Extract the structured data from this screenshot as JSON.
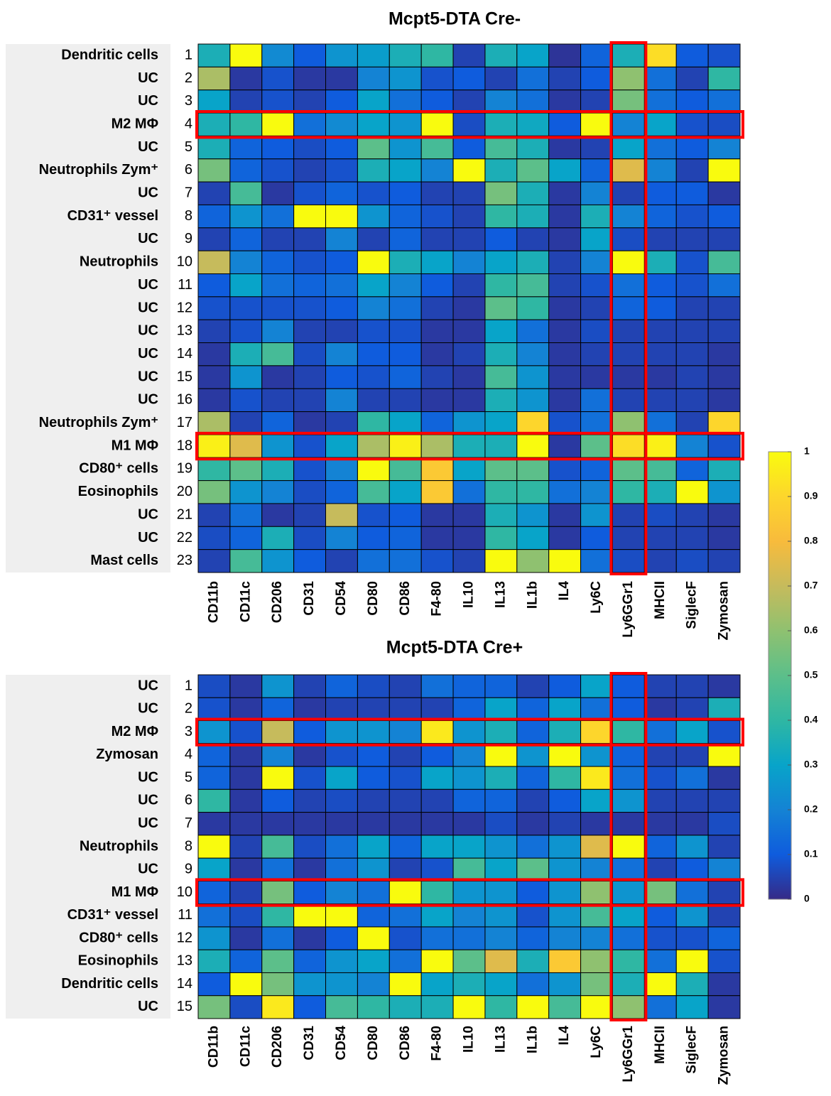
{
  "chart_data": [
    {
      "type": "heatmap",
      "title": "Mcpt5-DTA Cre-",
      "row_labels": [
        "Dendritic cells",
        "UC",
        "UC",
        "M2 MΦ",
        "UC",
        "Neutrophils Zym⁺",
        "UC",
        "CD31⁺ vessel",
        "UC",
        "Neutrophils",
        "UC",
        "UC",
        "UC",
        "UC",
        "UC",
        "UC",
        "Neutrophils Zym⁺",
        "M1 MΦ",
        "CD80⁺ cells",
        "Eosinophils",
        "UC",
        "UC",
        "Mast cells"
      ],
      "row_numbers": [
        1,
        2,
        3,
        4,
        5,
        6,
        7,
        8,
        9,
        10,
        11,
        12,
        13,
        14,
        15,
        16,
        17,
        18,
        19,
        20,
        21,
        22,
        23
      ],
      "columns": [
        "CD11b",
        "CD11c",
        "CD206",
        "CD31",
        "CD54",
        "CD80",
        "CD86",
        "F4-80",
        "IL10",
        "IL13",
        "IL1b",
        "IL4",
        "Ly6C",
        "Ly6GGr1",
        "MHCII",
        "SiglecF",
        "Zymosan"
      ],
      "values": [
        [
          0.35,
          1,
          0.22,
          0.1,
          0.25,
          0.28,
          0.35,
          0.4,
          0.05,
          0.35,
          0.3,
          0.02,
          0.12,
          0.35,
          0.92,
          0.1,
          0.08
        ],
        [
          0.65,
          0.03,
          0.08,
          0.03,
          0.03,
          0.2,
          0.25,
          0.08,
          0.1,
          0.05,
          0.15,
          0.05,
          0.1,
          0.6,
          0.15,
          0.05,
          0.4
        ],
        [
          0.3,
          0.05,
          0.08,
          0.05,
          0.1,
          0.3,
          0.15,
          0.1,
          0.05,
          0.2,
          0.15,
          0.03,
          0.05,
          0.55,
          0.15,
          0.1,
          0.15
        ],
        [
          0.35,
          0.4,
          1,
          0.15,
          0.22,
          0.3,
          0.25,
          1,
          0.07,
          0.35,
          0.32,
          0.1,
          1,
          0.2,
          0.3,
          0.08,
          0.07
        ],
        [
          0.35,
          0.12,
          0.1,
          0.07,
          0.1,
          0.5,
          0.25,
          0.45,
          0.1,
          0.45,
          0.35,
          0.03,
          0.05,
          0.3,
          0.15,
          0.1,
          0.2
        ],
        [
          0.55,
          0.12,
          0.08,
          0.05,
          0.08,
          0.35,
          0.3,
          0.2,
          1,
          0.35,
          0.5,
          0.3,
          0.12,
          0.75,
          0.2,
          0.05,
          1
        ],
        [
          0.05,
          0.45,
          0.03,
          0.08,
          0.12,
          0.08,
          0.1,
          0.05,
          0.05,
          0.55,
          0.35,
          0.03,
          0.2,
          0.05,
          0.1,
          0.1,
          0.03
        ],
        [
          0.12,
          0.25,
          0.15,
          1,
          1,
          0.25,
          0.12,
          0.08,
          0.05,
          0.4,
          0.35,
          0.03,
          0.35,
          0.2,
          0.12,
          0.08,
          0.1
        ],
        [
          0.05,
          0.12,
          0.05,
          0.05,
          0.2,
          0.05,
          0.12,
          0.05,
          0.05,
          0.1,
          0.05,
          0.03,
          0.3,
          0.07,
          0.05,
          0.05,
          0.05
        ],
        [
          0.7,
          0.2,
          0.12,
          0.08,
          0.1,
          1,
          0.35,
          0.3,
          0.2,
          0.3,
          0.35,
          0.05,
          0.2,
          1,
          0.35,
          0.08,
          0.45
        ],
        [
          0.1,
          0.3,
          0.15,
          0.12,
          0.15,
          0.3,
          0.2,
          0.1,
          0.05,
          0.4,
          0.45,
          0.05,
          0.08,
          0.15,
          0.1,
          0.08,
          0.15
        ],
        [
          0.08,
          0.08,
          0.08,
          0.08,
          0.1,
          0.2,
          0.15,
          0.05,
          0.03,
          0.5,
          0.4,
          0.03,
          0.05,
          0.12,
          0.1,
          0.05,
          0.05
        ],
        [
          0.05,
          0.08,
          0.2,
          0.05,
          0.05,
          0.08,
          0.08,
          0.03,
          0.03,
          0.3,
          0.15,
          0.03,
          0.07,
          0.05,
          0.05,
          0.05,
          0.05
        ],
        [
          0.03,
          0.35,
          0.45,
          0.07,
          0.2,
          0.1,
          0.1,
          0.03,
          0.05,
          0.35,
          0.2,
          0.03,
          0.05,
          0.05,
          0.05,
          0.05,
          0.03
        ],
        [
          0.03,
          0.25,
          0.03,
          0.05,
          0.1,
          0.08,
          0.12,
          0.05,
          0.03,
          0.45,
          0.25,
          0.03,
          0.03,
          0.03,
          0.03,
          0.05,
          0.03
        ],
        [
          0.03,
          0.08,
          0.05,
          0.05,
          0.2,
          0.05,
          0.05,
          0.03,
          0.03,
          0.35,
          0.25,
          0.03,
          0.15,
          0.05,
          0.05,
          0.05,
          0.03
        ],
        [
          0.65,
          0.05,
          0.12,
          0.03,
          0.05,
          0.4,
          0.3,
          0.12,
          0.25,
          0.3,
          0.9,
          0.08,
          0.15,
          0.6,
          0.15,
          0.05,
          0.9
        ],
        [
          0.97,
          0.75,
          0.25,
          0.08,
          0.3,
          0.65,
          0.97,
          0.65,
          0.35,
          0.35,
          1,
          0.03,
          0.5,
          0.92,
          0.97,
          0.2,
          0.08
        ],
        [
          0.4,
          0.5,
          0.35,
          0.08,
          0.2,
          1,
          0.45,
          0.85,
          0.3,
          0.5,
          0.5,
          0.08,
          0.12,
          0.5,
          0.45,
          0.12,
          0.35
        ],
        [
          0.55,
          0.25,
          0.2,
          0.07,
          0.12,
          0.45,
          0.3,
          0.85,
          0.15,
          0.4,
          0.4,
          0.15,
          0.2,
          0.4,
          0.35,
          1,
          0.25
        ],
        [
          0.05,
          0.15,
          0.03,
          0.05,
          0.7,
          0.08,
          0.1,
          0.03,
          0.03,
          0.35,
          0.25,
          0.03,
          0.25,
          0.05,
          0.07,
          0.05,
          0.03
        ],
        [
          0.07,
          0.12,
          0.35,
          0.07,
          0.2,
          0.1,
          0.12,
          0.03,
          0.03,
          0.4,
          0.3,
          0.03,
          0.1,
          0.05,
          0.05,
          0.05,
          0.03
        ],
        [
          0.05,
          0.45,
          0.25,
          0.1,
          0.05,
          0.15,
          0.15,
          0.08,
          0.05,
          1,
          0.6,
          1,
          0.15,
          0.07,
          0.05,
          0.07,
          0.05
        ]
      ],
      "highlight_rows": [
        4,
        18
      ],
      "highlight_columns": [
        "Ly6GGr1"
      ]
    },
    {
      "type": "heatmap",
      "title": "Mcpt5-DTA Cre+",
      "row_labels": [
        "UC",
        "UC",
        "M2 MΦ",
        "Zymosan",
        "UC",
        "UC",
        "UC",
        "Neutrophils",
        "UC",
        "M1 MΦ",
        "CD31⁺ vessel",
        "CD80⁺ cells",
        "Eosinophils",
        "Dendritic cells",
        "UC"
      ],
      "row_numbers": [
        1,
        2,
        3,
        4,
        5,
        6,
        7,
        8,
        9,
        10,
        11,
        12,
        13,
        14,
        15
      ],
      "columns": [
        "CD11b",
        "CD11c",
        "CD206",
        "CD31",
        "CD54",
        "CD80",
        "CD86",
        "F4-80",
        "IL10",
        "IL13",
        "IL1b",
        "IL4",
        "Ly6C",
        "Ly6GGr1",
        "MHCII",
        "SiglecF",
        "Zymosan"
      ],
      "values": [
        [
          0.07,
          0.03,
          0.25,
          0.05,
          0.12,
          0.07,
          0.05,
          0.15,
          0.12,
          0.12,
          0.05,
          0.1,
          0.3,
          0.1,
          0.05,
          0.05,
          0.03
        ],
        [
          0.08,
          0.03,
          0.12,
          0.03,
          0.05,
          0.05,
          0.05,
          0.05,
          0.12,
          0.3,
          0.12,
          0.3,
          0.15,
          0.1,
          0.03,
          0.05,
          0.35
        ],
        [
          0.25,
          0.08,
          0.7,
          0.1,
          0.25,
          0.25,
          0.2,
          0.95,
          0.25,
          0.35,
          0.12,
          0.35,
          0.9,
          0.4,
          0.15,
          0.3,
          0.08
        ],
        [
          0.12,
          0.03,
          0.2,
          0.03,
          0.08,
          0.1,
          0.05,
          0.1,
          0.2,
          1,
          0.25,
          1,
          0.25,
          0.12,
          0.05,
          0.05,
          1
        ],
        [
          0.12,
          0.03,
          1,
          0.08,
          0.3,
          0.1,
          0.08,
          0.3,
          0.25,
          0.35,
          0.12,
          0.4,
          0.95,
          0.15,
          0.08,
          0.15,
          0.03
        ],
        [
          0.4,
          0.03,
          0.1,
          0.05,
          0.07,
          0.05,
          0.05,
          0.05,
          0.12,
          0.12,
          0.05,
          0.1,
          0.3,
          0.25,
          0.05,
          0.05,
          0.05
        ],
        [
          0.03,
          0.03,
          0.03,
          0.03,
          0.03,
          0.03,
          0.03,
          0.03,
          0.03,
          0.07,
          0.03,
          0.05,
          0.03,
          0.03,
          0.03,
          0.03,
          0.07
        ],
        [
          1,
          0.05,
          0.45,
          0.07,
          0.15,
          0.3,
          0.12,
          0.3,
          0.3,
          0.25,
          0.15,
          0.25,
          0.75,
          1,
          0.12,
          0.25,
          0.05
        ],
        [
          0.3,
          0.03,
          0.15,
          0.03,
          0.15,
          0.25,
          0.05,
          0.08,
          0.45,
          0.3,
          0.5,
          0.25,
          0.2,
          0.15,
          0.05,
          0.1,
          0.2
        ],
        [
          0.12,
          0.05,
          0.55,
          0.1,
          0.2,
          0.15,
          1,
          0.4,
          0.25,
          0.25,
          0.1,
          0.25,
          0.6,
          0.25,
          0.55,
          0.15,
          0.05
        ],
        [
          0.15,
          0.07,
          0.4,
          1,
          1,
          0.12,
          0.15,
          0.3,
          0.2,
          0.25,
          0.08,
          0.25,
          0.45,
          0.3,
          0.1,
          0.25,
          0.05
        ],
        [
          0.25,
          0.03,
          0.15,
          0.03,
          0.1,
          1,
          0.08,
          0.15,
          0.15,
          0.2,
          0.12,
          0.2,
          0.2,
          0.15,
          0.08,
          0.08,
          0.12
        ],
        [
          0.35,
          0.12,
          0.5,
          0.12,
          0.25,
          0.3,
          0.15,
          1,
          0.5,
          0.75,
          0.35,
          0.85,
          0.6,
          0.4,
          0.15,
          1,
          0.08
        ],
        [
          0.1,
          1,
          0.55,
          0.25,
          0.25,
          0.2,
          1,
          0.3,
          0.35,
          0.3,
          0.15,
          0.25,
          0.55,
          0.35,
          1,
          0.35,
          0.03
        ],
        [
          0.55,
          0.07,
          0.95,
          0.1,
          0.45,
          0.4,
          0.35,
          0.35,
          1,
          0.4,
          1,
          0.45,
          1,
          0.6,
          0.15,
          0.3,
          0.03
        ]
      ],
      "highlight_rows": [
        3,
        10
      ],
      "highlight_columns": [
        "Ly6GGr1"
      ]
    }
  ],
  "colorbar": {
    "lim": [
      0,
      1
    ],
    "ticks": [
      0,
      0.1,
      0.2,
      0.3,
      0.4,
      0.5,
      0.6,
      0.7,
      0.8,
      0.9,
      1
    ],
    "colors": [
      "#352a87",
      "#0f5cdd",
      "#1483d4",
      "#08a4c9",
      "#2fb7a3",
      "#5cbf8a",
      "#8fc170",
      "#c6bb5c",
      "#f8bb3c",
      "#fdd62c",
      "#f9fb0e"
    ]
  },
  "highlight_color": "#ff0000"
}
